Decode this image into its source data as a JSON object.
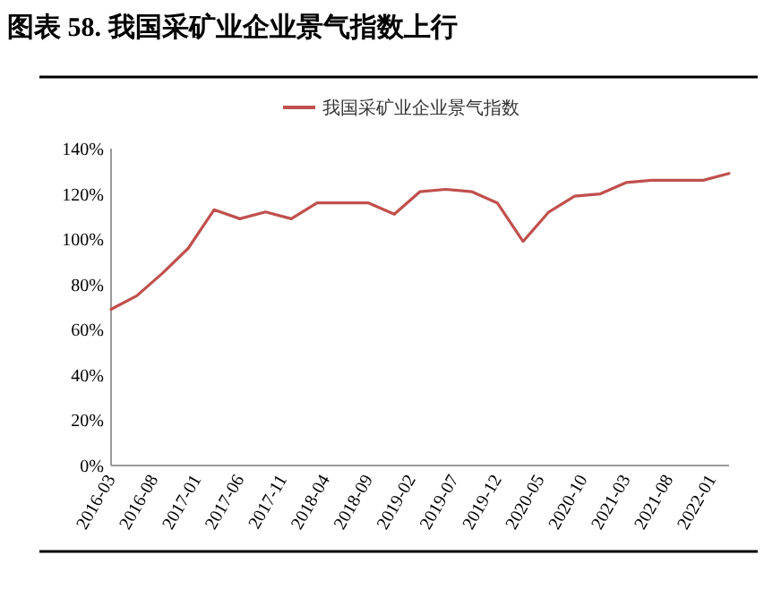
{
  "chart_data": {
    "type": "line",
    "title": "图表 58. 我国采矿业企业景气指数上行",
    "x": [
      "2016-03",
      "2016-06",
      "2016-09",
      "2016-12",
      "2017-03",
      "2017-06",
      "2017-09",
      "2017-12",
      "2018-03",
      "2018-06",
      "2018-09",
      "2018-12",
      "2019-03",
      "2019-06",
      "2019-09",
      "2019-12",
      "2020-03",
      "2020-06",
      "2020-09",
      "2020-12",
      "2021-03",
      "2021-06",
      "2021-09",
      "2021-12",
      "2022-03"
    ],
    "series": [
      {
        "name": "我国采矿业企业景气指数",
        "color": "#c0504d",
        "values": [
          69,
          75,
          85,
          96,
          113,
          109,
          112,
          109,
          116,
          116,
          116,
          111,
          121,
          122,
          121,
          116,
          99,
          112,
          119,
          120,
          125,
          126,
          126,
          126,
          129
        ]
      }
    ],
    "xlim": [
      "2016-03",
      "2022-03"
    ],
    "xticks": [
      {
        "value": "2016-03",
        "label": "2016-03"
      },
      {
        "value": "2016-08",
        "label": "2016-08"
      },
      {
        "value": "2017-01",
        "label": "2017-01"
      },
      {
        "value": "2017-06",
        "label": "2017-06"
      },
      {
        "value": "2017-11",
        "label": "2017-11"
      },
      {
        "value": "2018-04",
        "label": "2018-04"
      },
      {
        "value": "2018-09",
        "label": "2018-09"
      },
      {
        "value": "2019-02",
        "label": "2019-02"
      },
      {
        "value": "2019-07",
        "label": "2019-07"
      },
      {
        "value": "2019-12",
        "label": "2019-12"
      },
      {
        "value": "2020-05",
        "label": "2020-05"
      },
      {
        "value": "2020-10",
        "label": "2020-10"
      },
      {
        "value": "2021-03",
        "label": "2021-03"
      },
      {
        "value": "2021-08",
        "label": "2021-08"
      },
      {
        "value": "2022-01",
        "label": "2022-01"
      }
    ],
    "ylim": [
      0,
      140
    ],
    "yticks": [
      {
        "value": 0,
        "label": "0%"
      },
      {
        "value": 20,
        "label": "20%"
      },
      {
        "value": 40,
        "label": "40%"
      },
      {
        "value": 60,
        "label": "60%"
      },
      {
        "value": 80,
        "label": "80%"
      },
      {
        "value": 100,
        "label": "100%"
      },
      {
        "value": 120,
        "label": "120%"
      },
      {
        "value": 140,
        "label": "140%"
      }
    ],
    "legend": "top",
    "grid": false,
    "marker": "none",
    "line_style": "solid"
  }
}
